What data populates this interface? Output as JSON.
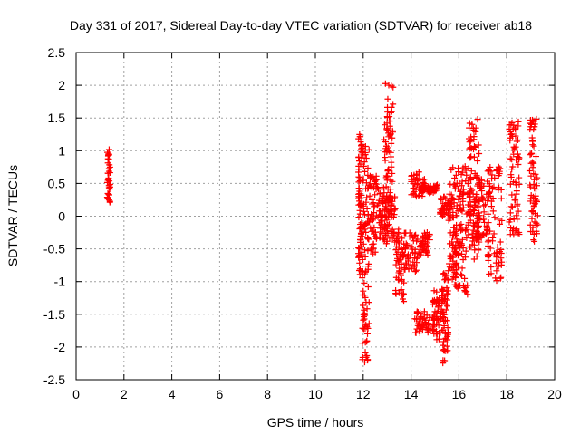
{
  "chart_data": {
    "type": "scatter",
    "title": "Day 331 of 2017, Sidereal Day-to-day VTEC variation (SDTVAR) for receiver ab18",
    "xlabel": "GPS time / hours",
    "ylabel": "SDTVAR / TECUs",
    "xlim": [
      0,
      20
    ],
    "ylim": [
      -2.5,
      2.5
    ],
    "xticks": [
      0,
      2,
      4,
      6,
      8,
      10,
      12,
      14,
      16,
      18,
      20
    ],
    "yticks": [
      2.5,
      2,
      1.5,
      1,
      0.5,
      0,
      -0.5,
      -1,
      -1.5,
      -2,
      -2.5
    ],
    "xtick_labels": [
      "0",
      "2",
      "4",
      "6",
      "8",
      "10",
      "12",
      "14",
      "16",
      "18",
      "20"
    ],
    "ytick_labels": [
      "2.5",
      "2",
      "1.5",
      "1",
      "0.5",
      "0",
      "-0.5",
      "-1",
      "-1.5",
      "-2",
      "-2.5"
    ],
    "grid": true,
    "marker": "+",
    "marker_color": "#ff0000",
    "series": [
      {
        "name": "SDTVAR",
        "clusters": [
          {
            "x": [
              1.3,
              1.42
            ],
            "y": [
              0.2,
              1.03
            ]
          },
          {
            "x": [
              11.8,
              11.95
            ],
            "y": [
              -0.9,
              1.25
            ]
          },
          {
            "x": [
              11.95,
              12.25
            ],
            "y": [
              -2.25,
              1.1
            ]
          },
          {
            "x": [
              12.25,
              12.65
            ],
            "y": [
              -0.6,
              0.65
            ]
          },
          {
            "x": [
              12.65,
              12.95
            ],
            "y": [
              -0.4,
              0.5
            ]
          },
          {
            "x": [
              12.85,
              13.25
            ],
            "y": [
              0.2,
              2.1
            ]
          },
          {
            "x": [
              12.95,
              13.35
            ],
            "y": [
              -0.45,
              0.3
            ]
          },
          {
            "x": [
              13.35,
              13.7
            ],
            "y": [
              -1.35,
              -0.2
            ]
          },
          {
            "x": [
              13.6,
              14.3
            ],
            "y": [
              -0.85,
              -0.25
            ]
          },
          {
            "x": [
              14.0,
              14.6
            ],
            "y": [
              0.3,
              0.68
            ]
          },
          {
            "x": [
              14.5,
              15.1
            ],
            "y": [
              0.35,
              0.48
            ]
          },
          {
            "x": [
              14.3,
              14.8
            ],
            "y": [
              -0.6,
              -0.25
            ]
          },
          {
            "x": [
              14.15,
              15.0
            ],
            "y": [
              -1.8,
              -1.45
            ]
          },
          {
            "x": [
              14.9,
              15.35
            ],
            "y": [
              -1.9,
              -1.1
            ]
          },
          {
            "x": [
              15.3,
              15.55
            ],
            "y": [
              -2.25,
              -0.85
            ]
          },
          {
            "x": [
              15.2,
              15.6
            ],
            "y": [
              0.0,
              0.3
            ]
          },
          {
            "x": [
              15.55,
              15.9
            ],
            "y": [
              -1.0,
              0.8
            ]
          },
          {
            "x": [
              15.8,
              16.4
            ],
            "y": [
              -1.2,
              -0.1
            ]
          },
          {
            "x": [
              15.9,
              16.5
            ],
            "y": [
              0.0,
              0.8
            ]
          },
          {
            "x": [
              16.4,
              16.85
            ],
            "y": [
              -0.7,
              1.5
            ]
          },
          {
            "x": [
              16.7,
              17.2
            ],
            "y": [
              -0.4,
              0.6
            ]
          },
          {
            "x": [
              17.2,
              17.8
            ],
            "y": [
              -1.0,
              0.8
            ]
          },
          {
            "x": [
              18.1,
              18.55
            ],
            "y": [
              -0.3,
              1.45
            ]
          },
          {
            "x": [
              18.95,
              19.3
            ],
            "y": [
              -0.4,
              1.5
            ]
          }
        ]
      }
    ]
  }
}
